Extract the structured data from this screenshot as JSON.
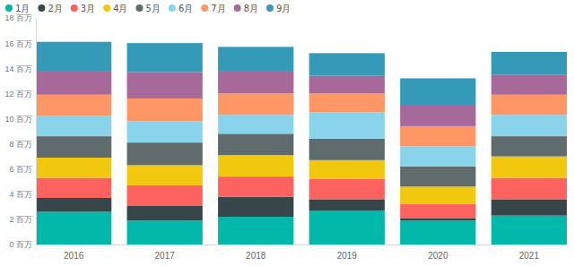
{
  "chart_data": {
    "type": "bar",
    "stacked": true,
    "grid": false,
    "legend": "top-left",
    "categories": [
      "2016",
      "2017",
      "2018",
      "2019",
      "2020",
      "2021"
    ],
    "ylim": [
      0,
      18
    ],
    "yticks": [
      {
        "value": 0,
        "label": "0 百万"
      },
      {
        "value": 2,
        "label": "2 百万"
      },
      {
        "value": 4,
        "label": "4 百万"
      },
      {
        "value": 6,
        "label": "6 百万"
      },
      {
        "value": 8,
        "label": "8 百万"
      },
      {
        "value": 10,
        "label": "10 百万"
      },
      {
        "value": 12,
        "label": "12 百万"
      },
      {
        "value": 14,
        "label": "14 百万"
      },
      {
        "value": 16,
        "label": "16 百万"
      },
      {
        "value": 18,
        "label": "18 百万"
      }
    ],
    "series": [
      {
        "name": "1月",
        "color": "#01B8AA",
        "values": [
          2.6,
          1.9,
          2.2,
          2.7,
          1.9,
          2.3
        ]
      },
      {
        "name": "2月",
        "color": "#374649",
        "values": [
          1.1,
          1.2,
          1.6,
          0.9,
          0.2,
          1.3
        ]
      },
      {
        "name": "3月",
        "color": "#FD625E",
        "values": [
          1.6,
          1.6,
          1.6,
          1.6,
          1.1,
          1.7
        ]
      },
      {
        "name": "4月",
        "color": "#F2C80F",
        "values": [
          1.6,
          1.6,
          1.7,
          1.5,
          1.4,
          1.7
        ]
      },
      {
        "name": "5月",
        "color": "#5F6B6D",
        "values": [
          1.7,
          1.8,
          1.7,
          1.7,
          1.6,
          1.6
        ]
      },
      {
        "name": "6月",
        "color": "#8AD4EB",
        "values": [
          1.6,
          1.7,
          1.5,
          2.1,
          1.6,
          1.7
        ]
      },
      {
        "name": "7月",
        "color": "#FE9666",
        "values": [
          1.7,
          1.8,
          1.7,
          1.5,
          1.6,
          1.6
        ]
      },
      {
        "name": "8月",
        "color": "#A66999",
        "values": [
          1.9,
          2.1,
          1.8,
          1.4,
          1.7,
          1.6
        ]
      },
      {
        "name": "9月",
        "color": "#3599B8",
        "values": [
          2.3,
          2.3,
          1.9,
          1.8,
          2.1,
          1.8
        ]
      }
    ]
  }
}
